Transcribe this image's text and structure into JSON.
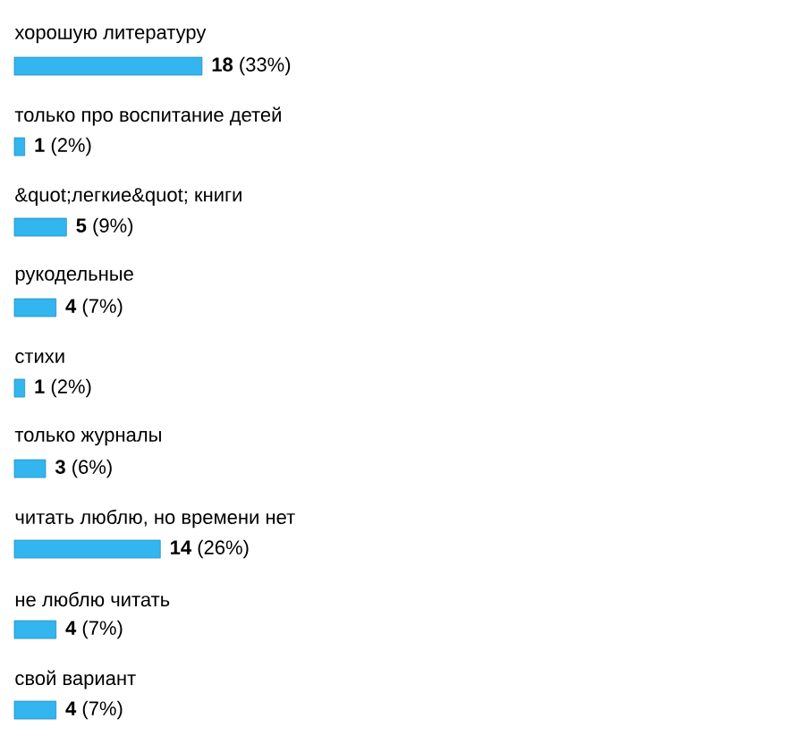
{
  "chart_data": {
    "type": "bar",
    "orientation": "horizontal",
    "categories": [
      "хорошую литературу",
      "только про воспитание детей",
      "&quot;легкие&quot; книги",
      "рукодельные",
      "стихи",
      "только журналы",
      "читать люблю, но времени нет",
      "не люблю читать",
      "свой вариант"
    ],
    "values": [
      18,
      1,
      5,
      4,
      1,
      3,
      14,
      4,
      4
    ],
    "value_labels": [
      "**18** (33%)",
      "**1** (2%)",
      "**5** (9%)",
      "**4** (7%)",
      "**1** (2%)",
      "**3** (6%)",
      "**14** (26%)",
      "**4** (7%)",
      "**4** (7%)"
    ],
    "color": "#33b5ef"
  }
}
